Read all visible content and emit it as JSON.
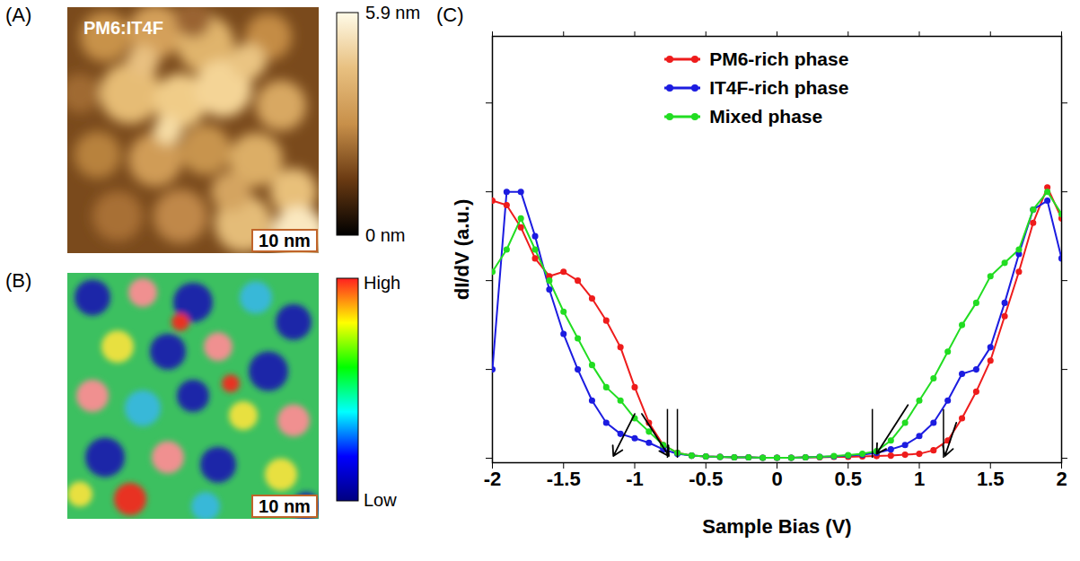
{
  "chart_data": [
    {
      "panel": "(A)",
      "type": "image",
      "title": "PM6:IT4F",
      "scale_bar": "10 nm",
      "colorbar_range": [
        0,
        5.9
      ],
      "colorbar_ticks": [
        {
          "value": 5.9,
          "label": "5.9 nm"
        },
        {
          "value": 0,
          "label": "0 nm"
        }
      ]
    },
    {
      "panel": "(B)",
      "type": "image",
      "scale_bar": "10 nm",
      "colorbar_labels": [
        "High",
        "Low"
      ]
    },
    {
      "panel": "(C)",
      "type": "line",
      "x_label": "Sample Bias (V)",
      "y_label": "dI/dV (a.u.)",
      "x": [
        -2,
        -1.9,
        -1.8,
        -1.7,
        -1.6,
        -1.5,
        -1.4,
        -1.3,
        -1.2,
        -1.1,
        -1,
        -0.9,
        -0.8,
        -0.7,
        -0.6,
        -0.5,
        -0.4,
        -0.3,
        -0.2,
        -0.1,
        0,
        0.1,
        0.2,
        0.3,
        0.4,
        0.5,
        0.6,
        0.7,
        0.8,
        0.9,
        1,
        1.1,
        1.2,
        1.3,
        1.4,
        1.5,
        1.6,
        1.7,
        1.8,
        1.9,
        2
      ],
      "series": [
        {
          "name": "PM6-rich phase",
          "color": "#ee1c1c",
          "values": [
            0.58,
            0.57,
            0.52,
            0.45,
            0.41,
            0.42,
            0.4,
            0.36,
            0.31,
            0.25,
            0.16,
            0.08,
            0.03,
            0.012,
            0.006,
            0.004,
            0.003,
            0.002,
            0.002,
            0.001,
            0.001,
            0.001,
            0.002,
            0.002,
            0.003,
            0.003,
            0.004,
            0.005,
            0.006,
            0.008,
            0.01,
            0.018,
            0.04,
            0.09,
            0.15,
            0.22,
            0.32,
            0.42,
            0.53,
            0.61,
            0.54
          ]
        },
        {
          "name": "IT4F-rich phase",
          "color": "#1c1ce0",
          "values": [
            0.2,
            0.6,
            0.6,
            0.5,
            0.38,
            0.28,
            0.2,
            0.13,
            0.08,
            0.055,
            0.045,
            0.035,
            0.02,
            0.01,
            0.006,
            0.004,
            0.003,
            0.002,
            0.002,
            0.001,
            0.001,
            0.001,
            0.002,
            0.003,
            0.004,
            0.006,
            0.008,
            0.012,
            0.02,
            0.03,
            0.05,
            0.08,
            0.13,
            0.19,
            0.2,
            0.25,
            0.35,
            0.46,
            0.56,
            0.58,
            0.45
          ]
        },
        {
          "name": "Mixed phase",
          "color": "#22dd22",
          "values": [
            0.42,
            0.47,
            0.54,
            0.47,
            0.4,
            0.33,
            0.27,
            0.21,
            0.16,
            0.13,
            0.09,
            0.06,
            0.03,
            0.012,
            0.006,
            0.004,
            0.003,
            0.002,
            0.002,
            0.001,
            0.001,
            0.001,
            0.002,
            0.003,
            0.005,
            0.007,
            0.01,
            0.016,
            0.04,
            0.08,
            0.13,
            0.18,
            0.24,
            0.3,
            0.35,
            0.41,
            0.44,
            0.47,
            0.56,
            0.6,
            0.55
          ]
        }
      ],
      "xlim": [
        -2,
        2
      ],
      "xticks": [
        -2,
        -1.5,
        -1,
        -0.5,
        0,
        0.5,
        1,
        1.5,
        2
      ],
      "ylim": [
        -0.01,
        0.95
      ],
      "yticks": [
        0,
        0.2,
        0.4,
        0.6,
        0.8
      ],
      "tick_labels": "x",
      "legend": "top",
      "marker": "circle",
      "line_style": "solid",
      "vlines": [
        {
          "x": -0.77,
          "y": [
            0,
            0.11
          ]
        },
        {
          "x": -0.7,
          "y": [
            0,
            0.11
          ]
        },
        {
          "x": 0.67,
          "y": [
            0,
            0.11
          ]
        },
        {
          "x": 1.17,
          "y": [
            0,
            0.11
          ]
        }
      ],
      "arrows": [
        {
          "from": [
            -1,
            0.1
          ],
          "to": [
            -1.15,
            0.005
          ]
        },
        {
          "from": [
            -0.95,
            0.1
          ],
          "to": [
            -0.76,
            0.005
          ]
        },
        {
          "from": [
            0.92,
            0.12
          ],
          "to": [
            0.7,
            0.01
          ]
        },
        {
          "from": [
            1.26,
            0.08
          ],
          "to": [
            1.18,
            0.005
          ]
        }
      ]
    }
  ]
}
